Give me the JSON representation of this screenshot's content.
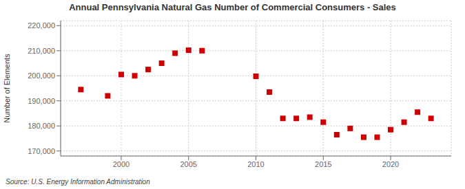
{
  "chart_data": {
    "type": "scatter",
    "title": "Annual Pennsylvania Natural Gas Number of Commercial Consumers - Sales",
    "y_label": "Number of Elements",
    "annotations": [
      "Source: U.S. Energy Information Administration"
    ],
    "x": [
      1997,
      1999,
      2000,
      2001,
      2002,
      2003,
      2004,
      2005,
      2006,
      2010,
      2011,
      2012,
      2013,
      2014,
      2015,
      2016,
      2017,
      2018,
      2019,
      2020,
      2021,
      2022,
      2023
    ],
    "values": [
      194500,
      192000,
      200500,
      200000,
      202500,
      205000,
      209000,
      210200,
      210000,
      199800,
      193500,
      183000,
      183000,
      183500,
      181500,
      176500,
      179000,
      175500,
      175500,
      178500,
      181500,
      185500,
      183000
    ],
    "color": "#cc0000",
    "marker": "square",
    "xlim": [
      1995.5,
      2024.5
    ],
    "xticks": [
      2000,
      2005,
      2010,
      2015,
      2020
    ],
    "ylim": [
      168000,
      222000
    ],
    "yticks": [
      {
        "value": 170000,
        "label": "170,000"
      },
      {
        "value": 180000,
        "label": "180,000"
      },
      {
        "value": 190000,
        "label": "190,000"
      },
      {
        "value": 200000,
        "label": "200,000"
      },
      {
        "value": 210000,
        "label": "210,000"
      },
      {
        "value": 220000,
        "label": "220,000"
      }
    ],
    "grid": true
  }
}
